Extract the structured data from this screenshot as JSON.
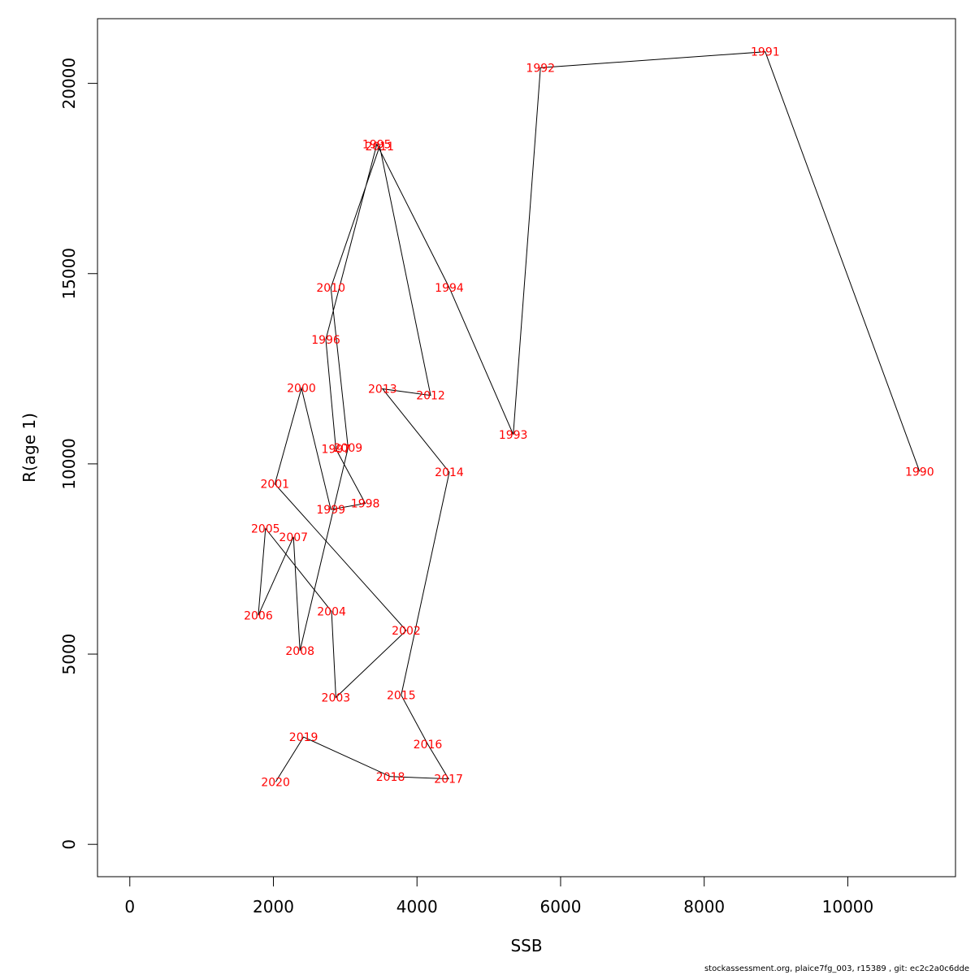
{
  "chart_data": {
    "type": "line",
    "xlabel": "SSB",
    "ylabel": "R(age 1)",
    "xlim": [
      -450,
      11500
    ],
    "ylim": [
      -850,
      21700
    ],
    "x_ticks": [
      0,
      2000,
      4000,
      6000,
      8000,
      10000
    ],
    "y_ticks": [
      0,
      5000,
      10000,
      15000,
      20000
    ],
    "label_color": "#ff0000",
    "line_color": "#000000",
    "points": [
      {
        "year": "1990",
        "x": 11000,
        "y": 9800
      },
      {
        "year": "1991",
        "x": 8850,
        "y": 20830
      },
      {
        "year": "1992",
        "x": 5720,
        "y": 20410
      },
      {
        "year": "1993",
        "x": 5340,
        "y": 10770
      },
      {
        "year": "1994",
        "x": 4450,
        "y": 14630
      },
      {
        "year": "1995",
        "x": 3440,
        "y": 18400
      },
      {
        "year": "1996",
        "x": 2730,
        "y": 13270
      },
      {
        "year": "1997",
        "x": 2870,
        "y": 10390
      },
      {
        "year": "1998",
        "x": 3280,
        "y": 8960
      },
      {
        "year": "1999",
        "x": 2800,
        "y": 8800
      },
      {
        "year": "2000",
        "x": 2390,
        "y": 11990
      },
      {
        "year": "2001",
        "x": 2020,
        "y": 9470
      },
      {
        "year": "2002",
        "x": 3850,
        "y": 5620
      },
      {
        "year": "2003",
        "x": 2870,
        "y": 3860
      },
      {
        "year": "2004",
        "x": 2810,
        "y": 6120
      },
      {
        "year": "2005",
        "x": 1890,
        "y": 8300
      },
      {
        "year": "2006",
        "x": 1790,
        "y": 6020
      },
      {
        "year": "2007",
        "x": 2280,
        "y": 8080
      },
      {
        "year": "2008",
        "x": 2370,
        "y": 5090
      },
      {
        "year": "2009",
        "x": 3040,
        "y": 10420
      },
      {
        "year": "2010",
        "x": 2800,
        "y": 14630
      },
      {
        "year": "2011",
        "x": 3480,
        "y": 18350
      },
      {
        "year": "2012",
        "x": 4190,
        "y": 11800
      },
      {
        "year": "2013",
        "x": 3520,
        "y": 11970
      },
      {
        "year": "2014",
        "x": 4450,
        "y": 9780
      },
      {
        "year": "2015",
        "x": 3780,
        "y": 3920
      },
      {
        "year": "2016",
        "x": 4150,
        "y": 2630
      },
      {
        "year": "2017",
        "x": 4440,
        "y": 1720
      },
      {
        "year": "2018",
        "x": 3630,
        "y": 1780
      },
      {
        "year": "2019",
        "x": 2420,
        "y": 2820
      },
      {
        "year": "2020",
        "x": 2030,
        "y": 1640
      }
    ]
  },
  "footer": {
    "note": "stockassessment.org, plaice7fg_003, r15389 , git: ec2c2a0c6dde"
  }
}
